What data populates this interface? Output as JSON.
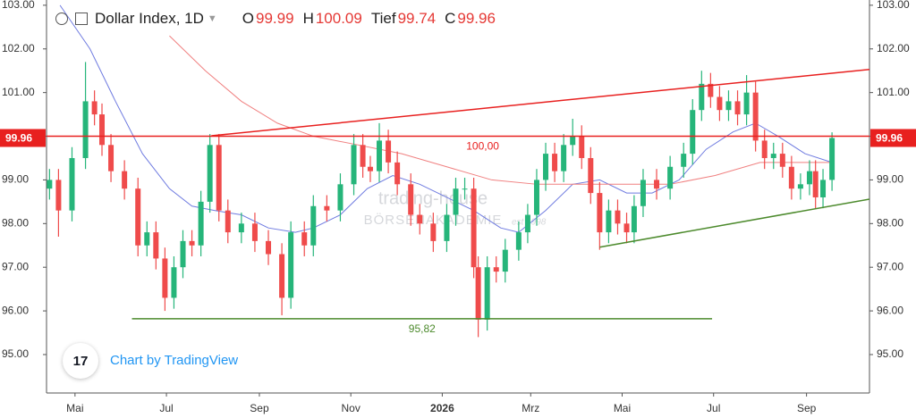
{
  "chart_data": {
    "type": "candlestick",
    "header": {
      "title": "Dollar Index, 1D",
      "ohlc": [
        {
          "label": "O",
          "value": 99.99
        },
        {
          "label": "H",
          "value": 100.09
        },
        {
          "label": "Tief",
          "value": 99.74
        },
        {
          "label": "C",
          "value": 99.96
        }
      ]
    },
    "xlim": [
      11,
      560
    ],
    "ylim": [
      94.12,
      103.12
    ],
    "xticks": [
      {
        "value": 30,
        "label": "Mai"
      },
      {
        "value": 91,
        "label": "Jul"
      },
      {
        "value": 153,
        "label": "Sep"
      },
      {
        "value": 214,
        "label": "Nov"
      },
      {
        "value": 275,
        "label": "2026"
      },
      {
        "value": 334,
        "label": "Mrz"
      },
      {
        "value": 395,
        "label": "Mai"
      },
      {
        "value": 456,
        "label": "Jul"
      },
      {
        "value": 518,
        "label": "Sep"
      }
    ],
    "yticks": [
      {
        "value": 95,
        "label": "95.00"
      },
      {
        "value": 96,
        "label": "96.00"
      },
      {
        "value": 97,
        "label": "97.00"
      },
      {
        "value": 98,
        "label": "98.00"
      },
      {
        "value": 99,
        "label": "99.00"
      },
      {
        "value": 100,
        "label": "100.00"
      },
      {
        "value": 101,
        "label": "101.00"
      },
      {
        "value": 102,
        "label": "102.00"
      },
      {
        "value": 103,
        "label": "103.00"
      }
    ],
    "up_color": "#26b57a",
    "down_color": "#ef4b4b",
    "candles": {
      "x": [
        13,
        19,
        28,
        37,
        43,
        48,
        54,
        63,
        72,
        78,
        84,
        90,
        96,
        102,
        108,
        114,
        120,
        126,
        132,
        141,
        150,
        159,
        168,
        174,
        183,
        189,
        198,
        207,
        216,
        222,
        227,
        233,
        239,
        245,
        254,
        260,
        269,
        278,
        284,
        290,
        296,
        299,
        305,
        311,
        317,
        326,
        332,
        338,
        344,
        350,
        356,
        362,
        368,
        374,
        380,
        386,
        392,
        398,
        403,
        409,
        418,
        427,
        436,
        442,
        448,
        454,
        460,
        466,
        472,
        478,
        484,
        490,
        496,
        502,
        508,
        514,
        520,
        524,
        529,
        535
      ],
      "open": [
        98.8,
        99.0,
        98.3,
        99.5,
        100.8,
        100.5,
        99.8,
        99.2,
        98.8,
        97.5,
        97.8,
        97.2,
        96.3,
        97.0,
        97.6,
        97.5,
        98.5,
        99.8,
        98.3,
        97.8,
        98.0,
        97.6,
        97.3,
        96.3,
        97.8,
        97.5,
        98.4,
        98.3,
        98.9,
        99.8,
        99.3,
        99.2,
        99.9,
        99.4,
        98.9,
        98.2,
        98.0,
        97.6,
        98.2,
        98.8,
        98.8,
        97.0,
        95.8,
        97.0,
        96.9,
        97.4,
        97.8,
        98.2,
        99.0,
        99.6,
        99.2,
        99.8,
        100.0,
        99.5,
        98.7,
        97.8,
        98.3,
        98.0,
        97.8,
        98.4,
        99.0,
        98.8,
        99.3,
        99.6,
        100.6,
        101.2,
        100.9,
        100.6,
        100.8,
        100.5,
        101.0,
        99.9,
        99.5,
        99.6,
        99.3,
        98.8,
        98.9,
        99.2,
        98.6,
        99.0
      ],
      "high": [
        99.25,
        99.25,
        99.75,
        101.7,
        101.05,
        100.75,
        100.05,
        99.45,
        99.05,
        98.05,
        98.05,
        97.45,
        97.25,
        97.85,
        97.85,
        98.75,
        100.05,
        100.05,
        98.55,
        98.25,
        98.25,
        97.85,
        97.55,
        98.05,
        98.05,
        98.65,
        98.65,
        99.15,
        100.05,
        100.05,
        99.55,
        100.3,
        100.15,
        99.65,
        99.15,
        98.45,
        98.25,
        98.45,
        99.05,
        99.05,
        99.05,
        97.25,
        97.25,
        97.25,
        97.65,
        98.05,
        98.45,
        99.25,
        99.85,
        99.85,
        100.05,
        100.4,
        100.25,
        99.75,
        98.95,
        98.55,
        98.55,
        98.25,
        98.65,
        99.25,
        99.25,
        99.55,
        99.85,
        100.85,
        101.5,
        101.45,
        101.15,
        101.05,
        101.05,
        101.4,
        101.25,
        100.15,
        99.85,
        99.85,
        99.55,
        99.15,
        99.45,
        99.45,
        99.25,
        100.09
      ],
      "low": [
        98.55,
        97.7,
        98.05,
        99.25,
        100.25,
        99.55,
        98.95,
        98.55,
        97.25,
        97.25,
        96.95,
        96.0,
        96.05,
        96.75,
        97.25,
        97.25,
        98.25,
        98.05,
        97.55,
        97.55,
        97.35,
        97.05,
        95.9,
        96.05,
        97.25,
        97.25,
        98.05,
        98.05,
        98.65,
        99.05,
        98.95,
        98.95,
        99.15,
        98.65,
        97.95,
        97.75,
        97.35,
        97.35,
        97.95,
        98.55,
        96.75,
        95.4,
        95.55,
        96.65,
        96.65,
        97.15,
        97.55,
        97.95,
        98.75,
        98.95,
        98.95,
        99.55,
        99.25,
        98.45,
        97.4,
        97.55,
        97.75,
        97.55,
        97.55,
        98.15,
        98.55,
        98.55,
        99.05,
        99.35,
        100.35,
        100.65,
        100.35,
        100.35,
        100.25,
        100.25,
        99.65,
        99.25,
        99.25,
        99.05,
        98.55,
        98.55,
        98.65,
        98.35,
        98.35,
        98.75
      ],
      "close": [
        99.0,
        98.3,
        99.5,
        100.8,
        100.5,
        99.8,
        99.2,
        98.8,
        97.5,
        97.8,
        97.2,
        96.3,
        97.0,
        97.6,
        97.5,
        98.5,
        99.8,
        98.3,
        97.8,
        98.0,
        97.6,
        97.3,
        96.3,
        97.8,
        97.5,
        98.4,
        98.3,
        98.9,
        99.8,
        99.3,
        99.2,
        99.9,
        99.4,
        98.9,
        98.2,
        98.0,
        97.6,
        98.2,
        98.8,
        98.8,
        97.0,
        95.8,
        97.0,
        96.9,
        97.4,
        97.8,
        98.2,
        99.0,
        99.6,
        99.2,
        99.8,
        100.0,
        99.5,
        98.7,
        97.8,
        98.3,
        98.0,
        97.8,
        98.4,
        99.0,
        98.8,
        99.3,
        99.6,
        100.6,
        101.2,
        100.9,
        100.6,
        100.8,
        100.5,
        101.0,
        99.9,
        99.5,
        99.6,
        99.3,
        98.8,
        98.9,
        99.2,
        98.6,
        99.0,
        99.96
      ]
    },
    "moving_averages": [
      {
        "color": "#6f7be0",
        "x": [
          20,
          40,
          57,
          75,
          93,
          108,
          123,
          141,
          159,
          177,
          189,
          207,
          225,
          242,
          260,
          278,
          296,
          314,
          326,
          344,
          362,
          380,
          398,
          415,
          433,
          451,
          469,
          484,
          499,
          517,
          535
        ],
        "values": [
          103.0,
          102.0,
          100.8,
          99.6,
          98.8,
          98.4,
          98.3,
          98.2,
          97.9,
          97.8,
          97.9,
          98.2,
          98.8,
          99.1,
          98.9,
          98.6,
          98.3,
          97.9,
          97.8,
          98.3,
          98.9,
          99.0,
          98.7,
          98.7,
          99.0,
          99.7,
          100.1,
          100.3,
          100.0,
          99.6,
          99.4
        ]
      },
      {
        "color": "#f08080",
        "x": [
          93,
          117,
          141,
          165,
          189,
          219,
          248,
          278,
          308,
          338,
          368,
          398,
          427,
          457,
          487,
          517,
          535
        ],
        "values": [
          102.3,
          101.5,
          100.8,
          100.3,
          100.0,
          99.8,
          99.6,
          99.3,
          99.0,
          98.9,
          98.9,
          98.9,
          98.9,
          99.1,
          99.4,
          99.4,
          99.4
        ]
      }
    ],
    "trend_lines": [
      {
        "color": "#e8201f",
        "x": [
          121,
          560
        ],
        "values": [
          100.01,
          101.53
        ]
      },
      {
        "color": "#4c8a2c",
        "x": [
          380,
          560
        ],
        "values": [
          97.46,
          98.56
        ]
      }
    ],
    "levels": [
      {
        "value": 100,
        "label": "100,00",
        "color": "#e8201f"
      },
      {
        "value": 95.82,
        "label": "95,82",
        "color": "#4c8a2c",
        "x": [
          68,
          455
        ]
      }
    ],
    "price_tag_color": "#e8201f",
    "watermark": [
      "trading-house",
      "BÖRSENAKADEMIE",
      "est 1998"
    ],
    "credit": "Chart by TradingView"
  }
}
